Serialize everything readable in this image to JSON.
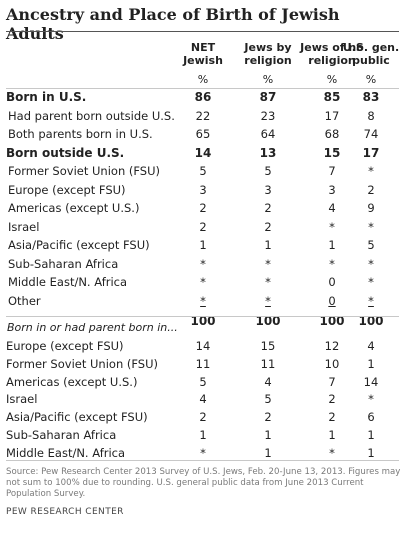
{
  "title": "Ancestry and Place of Birth of Jewish Adults",
  "chart_data": {
    "type": "table",
    "columns": [
      "NET Jewish",
      "Jews by religion",
      "Jews of no religion",
      "U.S. gen. public"
    ],
    "unit_row": [
      "%",
      "%",
      "%",
      "%"
    ],
    "section1": [
      {
        "label": "Born in U.S.",
        "bold": true,
        "values": [
          "86",
          "87",
          "85",
          "83"
        ]
      },
      {
        "label": "Had parent born outside U.S.",
        "bold": false,
        "values": [
          "22",
          "23",
          "17",
          "8"
        ]
      },
      {
        "label": "Both parents born in U.S.",
        "bold": false,
        "values": [
          "65",
          "64",
          "68",
          "74"
        ]
      },
      {
        "label": "Born outside U.S.",
        "bold": true,
        "values": [
          "14",
          "13",
          "15",
          "17"
        ]
      },
      {
        "label": "Former Soviet Union (FSU)",
        "bold": false,
        "values": [
          "5",
          "5",
          "7",
          "*"
        ]
      },
      {
        "label": "Europe (except FSU)",
        "bold": false,
        "values": [
          "3",
          "3",
          "3",
          "2"
        ]
      },
      {
        "label": "Americas (except U.S.)",
        "bold": false,
        "values": [
          "2",
          "2",
          "4",
          "9"
        ]
      },
      {
        "label": "Israel",
        "bold": false,
        "values": [
          "2",
          "2",
          "*",
          "*"
        ]
      },
      {
        "label": "Asia/Pacific (except FSU)",
        "bold": false,
        "values": [
          "1",
          "1",
          "1",
          "5"
        ]
      },
      {
        "label": "Sub-Saharan Africa",
        "bold": false,
        "values": [
          "*",
          "*",
          "*",
          "*"
        ]
      },
      {
        "label": "Middle East/N. Africa",
        "bold": false,
        "values": [
          "*",
          "*",
          "0",
          "*"
        ]
      },
      {
        "label": "Other",
        "bold": false,
        "values": [
          "*",
          "*",
          "0",
          "*"
        ],
        "underline": true
      }
    ],
    "totals": [
      "100",
      "100",
      "100",
      "100"
    ],
    "section2_title": "Born in or had parent born in...",
    "section2": [
      {
        "label": "Europe (except FSU)",
        "values": [
          "14",
          "15",
          "12",
          "4"
        ]
      },
      {
        "label": "Former Soviet Union (FSU)",
        "values": [
          "11",
          "11",
          "10",
          "1"
        ]
      },
      {
        "label": "Americas (except U.S.)",
        "values": [
          "5",
          "4",
          "7",
          "14"
        ]
      },
      {
        "label": "Israel",
        "values": [
          "4",
          "5",
          "2",
          "*"
        ]
      },
      {
        "label": "Asia/Pacific (except FSU)",
        "values": [
          "2",
          "2",
          "2",
          "6"
        ]
      },
      {
        "label": "Sub-Saharan Africa",
        "values": [
          "1",
          "1",
          "1",
          "1"
        ]
      },
      {
        "label": "Middle East/N. Africa",
        "values": [
          "*",
          "1",
          "*",
          "1"
        ]
      }
    ]
  },
  "header_lines": [
    [
      "NET",
      "Jewish"
    ],
    [
      "Jews by",
      "religion"
    ],
    [
      "Jews of no",
      "religion"
    ],
    [
      "U.S. gen.",
      "public"
    ]
  ],
  "source": "Source: Pew Research Center 2013 Survey of U.S. Jews, Feb. 20-June 13, 2013. Figures may not sum to 100% due to rounding. U.S. general public data from June 2013 Current Population Survey.",
  "brand": "PEW RESEARCH CENTER"
}
